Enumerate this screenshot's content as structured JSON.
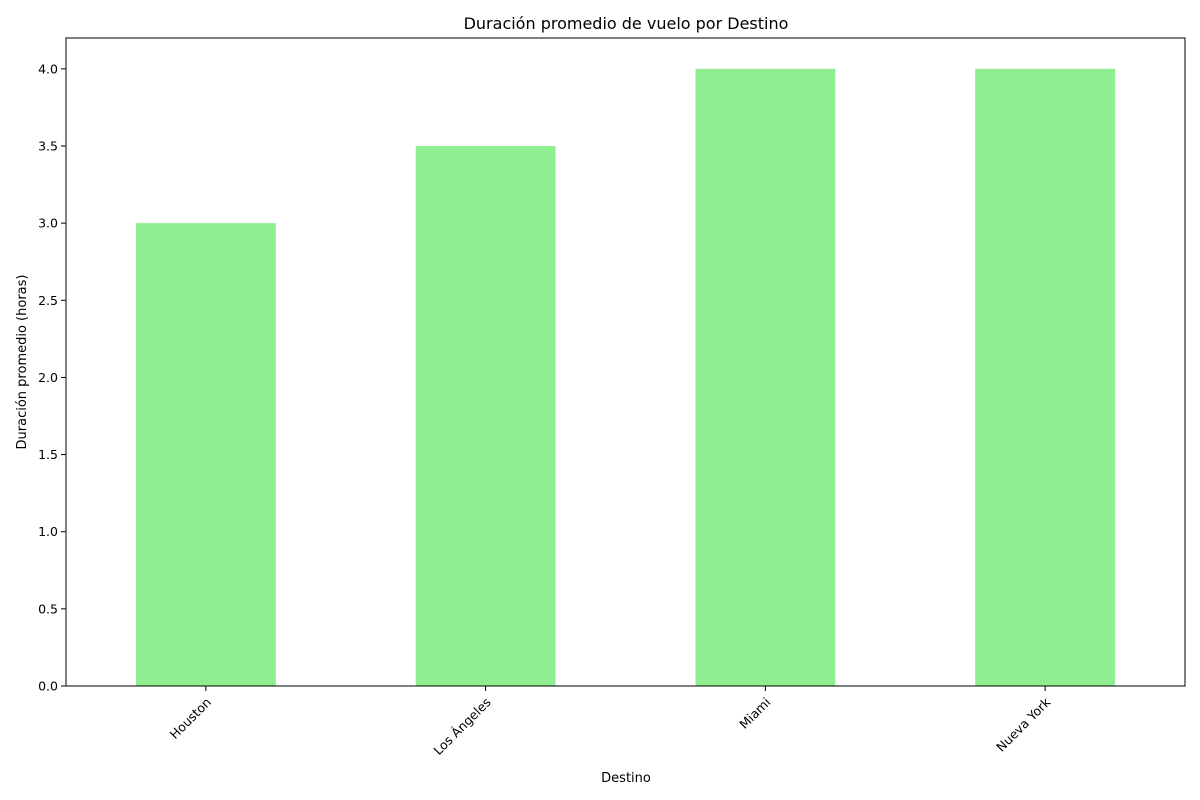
{
  "chart_data": {
    "type": "bar",
    "title": "Duración promedio de vuelo por Destino",
    "xlabel": "Destino",
    "ylabel": "Duración promedio (horas)",
    "categories": [
      "Houston",
      "Los Ángeles",
      "Miami",
      "Nueva York"
    ],
    "values": [
      3.0,
      3.5,
      4.0,
      4.0
    ],
    "ylim": [
      0,
      4.2
    ],
    "yticks": [
      "0.0",
      "0.5",
      "1.0",
      "1.5",
      "2.0",
      "2.5",
      "3.0",
      "3.5",
      "4.0"
    ],
    "bar_color": "#90ee90",
    "grid": false,
    "legend": "none"
  }
}
